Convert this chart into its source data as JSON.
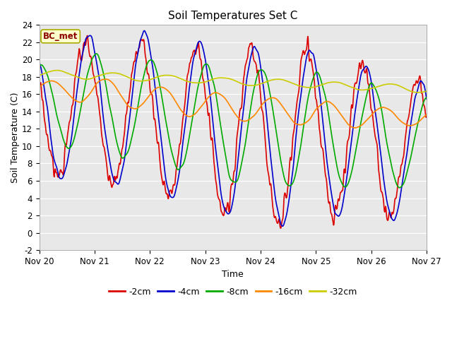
{
  "title": "Soil Temperatures Set C",
  "xlabel": "Time",
  "ylabel": "Soil Temperature (C)",
  "ylim": [
    -2,
    24
  ],
  "yticks": [
    -2,
    0,
    2,
    4,
    6,
    8,
    10,
    12,
    14,
    16,
    18,
    20,
    22,
    24
  ],
  "xtick_labels": [
    "Nov 20",
    "Nov 21",
    "Nov 22",
    "Nov 23",
    "Nov 24",
    "Nov 25",
    "Nov 26",
    "Nov 27"
  ],
  "bg_color": "#e8e8e8",
  "plot_bg_color": "#e8e8e8",
  "legend_label": "BC_met",
  "series_labels": [
    "-2cm",
    "-4cm",
    "-8cm",
    "-16cm",
    "-32cm"
  ],
  "series_colors": [
    "#dd0000",
    "#0000cc",
    "#00aa00",
    "#ff8800",
    "#cccc00"
  ],
  "line_width": 1.2,
  "n_points": 1008,
  "figsize": [
    6.4,
    4.8
  ],
  "dpi": 100
}
